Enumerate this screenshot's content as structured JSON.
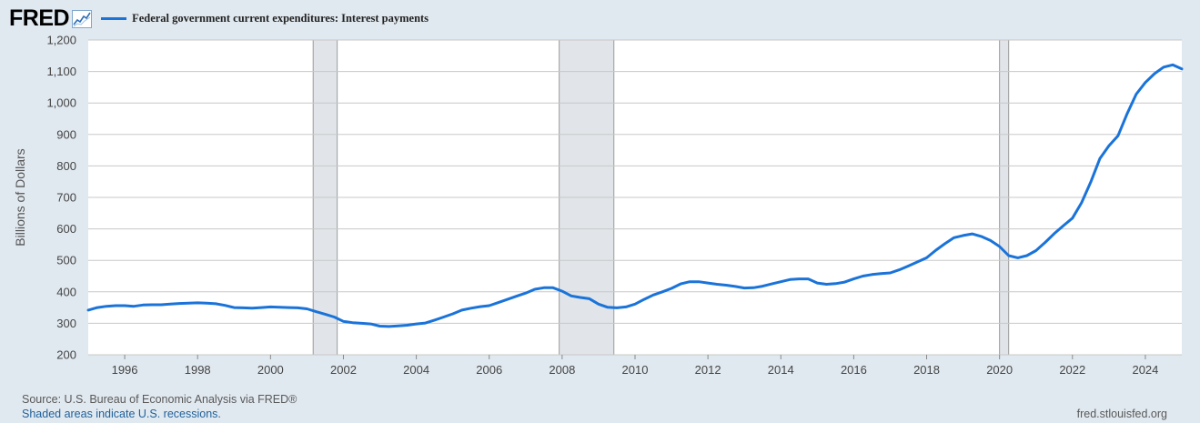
{
  "header": {
    "logo_text": "FRED",
    "logo_icon": "line-chart-icon",
    "legend_label": "Federal government current expenditures: Interest payments"
  },
  "colors": {
    "series": "#1a73d9",
    "recession": "#e1e5e9",
    "grid": "#c8c8c8",
    "plot_bg": "#ffffff",
    "page_bg": "#e1e9f0"
  },
  "chart_data": {
    "type": "line",
    "title": "",
    "xlabel": "",
    "ylabel": "Billions of Dollars",
    "xlim": [
      1995.0,
      2025.0
    ],
    "ylim": [
      200,
      1200
    ],
    "y_ticks": [
      200,
      300,
      400,
      500,
      600,
      700,
      800,
      900,
      1000,
      1100,
      1200
    ],
    "y_tick_labels": [
      "200",
      "300",
      "400",
      "500",
      "600",
      "700",
      "800",
      "900",
      "1,000",
      "1,100",
      "1,200"
    ],
    "x_ticks": [
      1996,
      1998,
      2000,
      2002,
      2004,
      2006,
      2008,
      2010,
      2012,
      2014,
      2016,
      2018,
      2020,
      2022,
      2024
    ],
    "x_tick_labels": [
      "1996",
      "1998",
      "2000",
      "2002",
      "2004",
      "2006",
      "2008",
      "2010",
      "2012",
      "2014",
      "2016",
      "2018",
      "2020",
      "2022",
      "2024"
    ],
    "grid": true,
    "legend": "top-left",
    "recessions": [
      [
        2001.17,
        2001.83
      ],
      [
        2007.92,
        2009.42
      ],
      [
        2020.0,
        2020.25
      ]
    ],
    "series": [
      {
        "name": "Federal government current expenditures: Interest payments",
        "x": [
          1995.0,
          1995.25,
          1995.5,
          1995.75,
          1996.0,
          1996.25,
          1996.5,
          1996.75,
          1997.0,
          1997.25,
          1997.5,
          1997.75,
          1998.0,
          1998.25,
          1998.5,
          1998.75,
          1999.0,
          1999.25,
          1999.5,
          1999.75,
          2000.0,
          2000.25,
          2000.5,
          2000.75,
          2001.0,
          2001.25,
          2001.5,
          2001.75,
          2002.0,
          2002.25,
          2002.5,
          2002.75,
          2003.0,
          2003.25,
          2003.5,
          2003.75,
          2004.0,
          2004.25,
          2004.5,
          2004.75,
          2005.0,
          2005.25,
          2005.5,
          2005.75,
          2006.0,
          2006.25,
          2006.5,
          2006.75,
          2007.0,
          2007.25,
          2007.5,
          2007.75,
          2008.0,
          2008.25,
          2008.5,
          2008.75,
          2009.0,
          2009.25,
          2009.5,
          2009.75,
          2010.0,
          2010.25,
          2010.5,
          2010.75,
          2011.0,
          2011.25,
          2011.5,
          2011.75,
          2012.0,
          2012.25,
          2012.5,
          2012.75,
          2013.0,
          2013.25,
          2013.5,
          2013.75,
          2014.0,
          2014.25,
          2014.5,
          2014.75,
          2015.0,
          2015.25,
          2015.5,
          2015.75,
          2016.0,
          2016.25,
          2016.5,
          2016.75,
          2017.0,
          2017.25,
          2017.5,
          2017.75,
          2018.0,
          2018.25,
          2018.5,
          2018.75,
          2019.0,
          2019.25,
          2019.5,
          2019.75,
          2020.0,
          2020.25,
          2020.5,
          2020.75,
          2021.0,
          2021.25,
          2021.5,
          2021.75,
          2022.0,
          2022.25,
          2022.5,
          2022.75,
          2023.0,
          2023.25,
          2023.5,
          2023.75,
          2024.0,
          2024.25,
          2024.5,
          2024.75,
          2025.0
        ],
        "values": [
          342,
          350,
          354,
          356,
          356,
          354,
          358,
          359,
          359,
          361,
          363,
          364,
          365,
          364,
          362,
          357,
          350,
          349,
          348,
          350,
          352,
          351,
          350,
          349,
          346,
          337,
          329,
          320,
          306,
          302,
          300,
          298,
          291,
          290,
          292,
          294,
          298,
          301,
          310,
          320,
          330,
          342,
          348,
          353,
          356,
          366,
          376,
          386,
          396,
          408,
          413,
          413,
          402,
          387,
          382,
          378,
          361,
          351,
          349,
          352,
          361,
          376,
          390,
          400,
          411,
          425,
          432,
          432,
          428,
          424,
          421,
          417,
          412,
          413,
          418,
          425,
          432,
          439,
          441,
          441,
          428,
          424,
          426,
          431,
          441,
          450,
          455,
          458,
          460,
          470,
          482,
          495,
          508,
          532,
          553,
          572,
          579,
          584,
          576,
          563,
          544,
          515,
          508,
          515,
          531,
          557,
          585,
          610,
          634,
          683,
          748,
          823,
          864,
          896,
          966,
          1028,
          1065,
          1093,
          1114,
          1121,
          1108
        ]
      }
    ]
  },
  "footer": {
    "source": "Source: U.S. Bureau of Economic Analysis via FRED®",
    "note": "Shaded areas indicate U.S. recessions.",
    "site": "fred.stlouisfed.org"
  }
}
